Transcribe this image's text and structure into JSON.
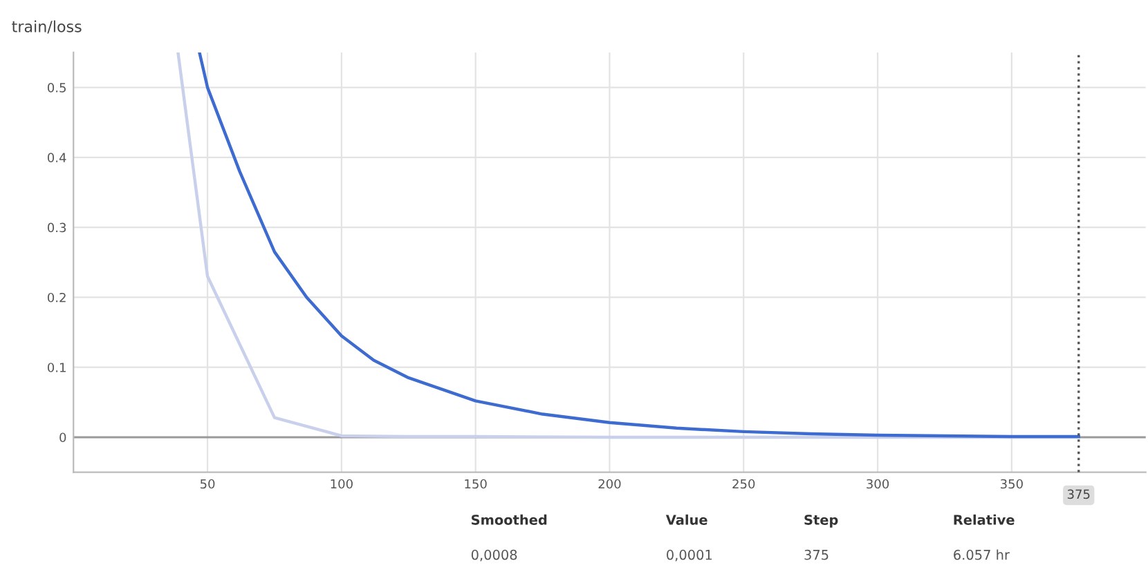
{
  "chart_data": {
    "type": "line",
    "title": "train/loss",
    "series": [
      {
        "color": "#c9d0ec",
        "x": [
          39,
          50,
          75,
          100,
          125,
          150,
          200,
          250,
          300,
          350,
          375
        ],
        "values": [
          0.55,
          0.23,
          0.028,
          0.002,
          0.001,
          0.001,
          0.0,
          0.0,
          0.0,
          0.0,
          0.0
        ]
      },
      {
        "color": "#3d6bd0",
        "x": [
          47,
          50,
          62,
          75,
          87,
          100,
          112,
          125,
          150,
          175,
          200,
          225,
          250,
          275,
          300,
          325,
          350,
          375
        ],
        "values": [
          0.55,
          0.5,
          0.38,
          0.265,
          0.2,
          0.145,
          0.11,
          0.085,
          0.052,
          0.033,
          0.021,
          0.013,
          0.008,
          0.005,
          0.003,
          0.002,
          0.001,
          0.001
        ]
      }
    ],
    "xlim": [
      0,
      400
    ],
    "ylim": [
      -0.05,
      0.55
    ],
    "xticks": [
      50,
      100,
      150,
      200,
      250,
      300,
      350
    ],
    "yticks": [
      0,
      0.1,
      0.2,
      0.3,
      0.4,
      0.5
    ],
    "grid": true,
    "marker": "none",
    "line_style": "solid",
    "ref_lines": [
      {
        "axis": "y",
        "value": 0,
        "color": "#9a9a9a",
        "line_style": "solid"
      },
      {
        "axis": "x",
        "value": 375,
        "label": "375",
        "color": "#555555",
        "line_style": "dotted"
      }
    ],
    "annotations": [
      "Smoothed",
      "0,0008",
      "Value",
      "0,0001",
      "Step",
      "375",
      "Relative",
      "6.057 hr"
    ]
  }
}
